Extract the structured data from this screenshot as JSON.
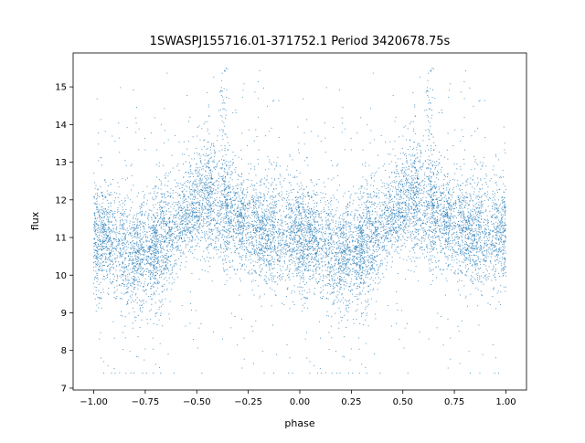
{
  "chart_data": {
    "type": "scatter",
    "title": "1SWASPJ155716.01-371752.1 Period 3420678.75s",
    "xlabel": "phase",
    "ylabel": "flux",
    "xlim": [
      -1.1,
      1.1
    ],
    "ylim": [
      6.95,
      15.9
    ],
    "xticks": [
      -1.0,
      -0.75,
      -0.5,
      -0.25,
      0.0,
      0.25,
      0.5,
      0.75,
      1.0
    ],
    "xtick_labels": [
      "−1.00",
      "−0.75",
      "−0.50",
      "−0.25",
      "0.00",
      "0.25",
      "0.50",
      "0.75",
      "1.00"
    ],
    "yticks": [
      7,
      8,
      9,
      10,
      11,
      12,
      13,
      14,
      15
    ],
    "ytick_labels": [
      "7",
      "8",
      "9",
      "10",
      "11",
      "12",
      "13",
      "14",
      "15"
    ],
    "grid": false,
    "legend": "none",
    "point_color": "#1f77b4",
    "phase_range": [
      -1.0,
      1.0
    ],
    "median_flux": 11.2,
    "typical_spread": [
      9.6,
      13.2
    ],
    "extreme_range": [
      7.4,
      15.5
    ],
    "brightest_phases": [
      -0.37,
      0.63
    ]
  }
}
